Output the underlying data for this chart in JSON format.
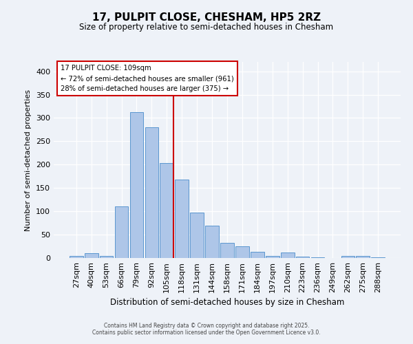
{
  "title": "17, PULPIT CLOSE, CHESHAM, HP5 2RZ",
  "subtitle": "Size of property relative to semi-detached houses in Chesham",
  "xlabel": "Distribution of semi-detached houses by size in Chesham",
  "ylabel": "Number of semi-detached properties",
  "bar_labels": [
    "27sqm",
    "40sqm",
    "53sqm",
    "66sqm",
    "79sqm",
    "92sqm",
    "105sqm",
    "118sqm",
    "131sqm",
    "144sqm",
    "158sqm",
    "171sqm",
    "184sqm",
    "197sqm",
    "210sqm",
    "223sqm",
    "236sqm",
    "249sqm",
    "262sqm",
    "275sqm",
    "288sqm"
  ],
  "bar_values": [
    5,
    10,
    5,
    110,
    312,
    280,
    204,
    168,
    98,
    70,
    33,
    25,
    13,
    5,
    12,
    3,
    2,
    0,
    5,
    5,
    2
  ],
  "bar_color": "#aec6e8",
  "bar_edge_color": "#5a96d0",
  "vline_color": "#cc0000",
  "annotation_title": "17 PULPIT CLOSE: 109sqm",
  "annotation_line1": "← 72% of semi-detached houses are smaller (961)",
  "annotation_line2": "28% of semi-detached houses are larger (375) →",
  "annotation_box_color": "#cc0000",
  "ylim": [
    0,
    420
  ],
  "yticks": [
    0,
    50,
    100,
    150,
    200,
    250,
    300,
    350,
    400
  ],
  "bg_color": "#eef2f8",
  "footer1": "Contains HM Land Registry data © Crown copyright and database right 2025.",
  "footer2": "Contains public sector information licensed under the Open Government Licence v3.0."
}
